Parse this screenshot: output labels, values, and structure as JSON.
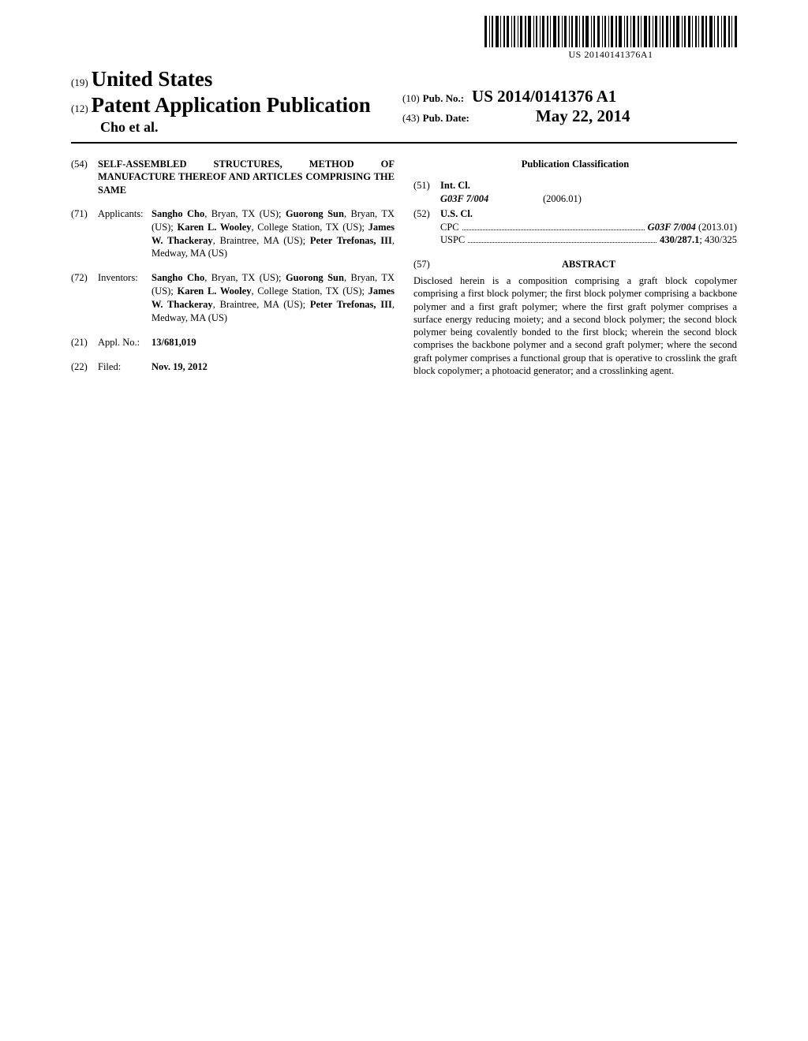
{
  "barcode_text": "US 20140141376A1",
  "header": {
    "code19": "(19)",
    "country": "United States",
    "code12": "(12)",
    "doc_type": "Patent Application Publication",
    "authors_short": "Cho et al.",
    "code10": "(10)",
    "pub_no_label": "Pub. No.:",
    "pub_no": "US 2014/0141376 A1",
    "code43": "(43)",
    "pub_date_label": "Pub. Date:",
    "pub_date": "May 22, 2014"
  },
  "fields": {
    "code54": "(54)",
    "title": "SELF-ASSEMBLED STRUCTURES, METHOD OF MANUFACTURE THEREOF AND ARTICLES COMPRISING THE SAME",
    "code71": "(71)",
    "applicants_label": "Applicants:",
    "applicants": "<b>Sangho Cho</b>, Bryan, TX (US); <b>Guorong Sun</b>, Bryan, TX (US); <b>Karen L. Wooley</b>, College Station, TX (US); <b>James W. Thackeray</b>, Braintree, MA (US); <b>Peter Trefonas, III</b>, Medway, MA (US)",
    "code72": "(72)",
    "inventors_label": "Inventors:",
    "inventors": "<b>Sangho Cho</b>, Bryan, TX (US); <b>Guorong Sun</b>, Bryan, TX (US); <b>Karen L. Wooley</b>, College Station, TX (US); <b>James W. Thackeray</b>, Braintree, MA (US); <b>Peter Trefonas, III</b>, Medway, MA (US)",
    "code21": "(21)",
    "appl_no_label": "Appl. No.:",
    "appl_no": "13/681,019",
    "code22": "(22)",
    "filed_label": "Filed:",
    "filed": "Nov. 19, 2012"
  },
  "classification": {
    "heading": "Publication Classification",
    "code51": "(51)",
    "int_cl_label": "Int. Cl.",
    "int_cl_code": "G03F 7/004",
    "int_cl_date": "(2006.01)",
    "code52": "(52)",
    "us_cl_label": "U.S. Cl.",
    "cpc_label": "CPC",
    "cpc_value": "G03F 7/004",
    "cpc_date": "(2013.01)",
    "uspc_label": "USPC",
    "uspc_value": "430/287.1",
    "uspc_extra": "; 430/325"
  },
  "abstract": {
    "code57": "(57)",
    "heading": "ABSTRACT",
    "body": "Disclosed herein is a composition comprising a graft block copolymer comprising a first block polymer; the first block polymer comprising a backbone polymer and a first graft polymer; where the first graft polymer comprises a surface energy reducing moiety; and a second block polymer; the second block polymer being covalently bonded to the first block; wherein the second block comprises the backbone polymer and a second graft polymer; where the second graft polymer comprises a functional group that is operative to crosslink the graft block copolymer; a photoacid generator; and a crosslinking agent."
  }
}
